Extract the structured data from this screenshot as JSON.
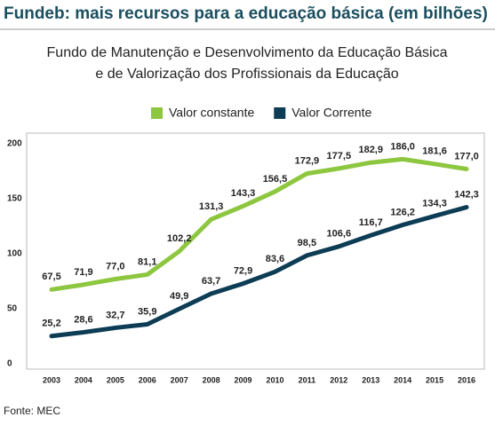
{
  "chart_data": {
    "type": "line",
    "title": "Fundeb: mais recursos para a educação básica (em bilhões)",
    "subtitle": [
      "Fundo de Manutenção e Desenvolvimento da Educação Básica",
      "e de Valorização dos Profissionais da Educação"
    ],
    "source": "Fonte: MEC",
    "categories": [
      "2003",
      "2004",
      "2005",
      "2006",
      "2007",
      "2008",
      "2009",
      "2010",
      "2011",
      "2012",
      "2013",
      "2014",
      "2015",
      "2016"
    ],
    "series": [
      {
        "name": "Valor constante",
        "color": "#8dc63f",
        "values": [
          67.5,
          71.9,
          77.0,
          81.1,
          102.2,
          131.3,
          143.3,
          156.5,
          172.9,
          177.5,
          182.9,
          186.0,
          181.6,
          177.0
        ],
        "value_labels": [
          "67,5",
          "71,9",
          "77,0",
          "81,1",
          "102,2",
          "131,3",
          "143,3",
          "156,5",
          "172,9",
          "177,5",
          "182,9",
          "186,0",
          "181,6",
          "177,0"
        ]
      },
      {
        "name": "Valor Corrente",
        "color": "#0d3c55",
        "values": [
          25.2,
          28.6,
          32.7,
          35.9,
          49.9,
          63.7,
          72.9,
          83.6,
          98.5,
          106.6,
          116.7,
          126.2,
          134.3,
          142.3
        ],
        "value_labels": [
          "25,2",
          "28,6",
          "32,7",
          "35,9",
          "49,9",
          "63,7",
          "72,9",
          "83,6",
          "98,5",
          "106,6",
          "116,7",
          "126,2",
          "134,3",
          "142,3"
        ]
      }
    ],
    "ylim": [
      0,
      200
    ],
    "yticks": [
      0,
      50,
      100,
      150,
      200
    ],
    "grid": false
  }
}
